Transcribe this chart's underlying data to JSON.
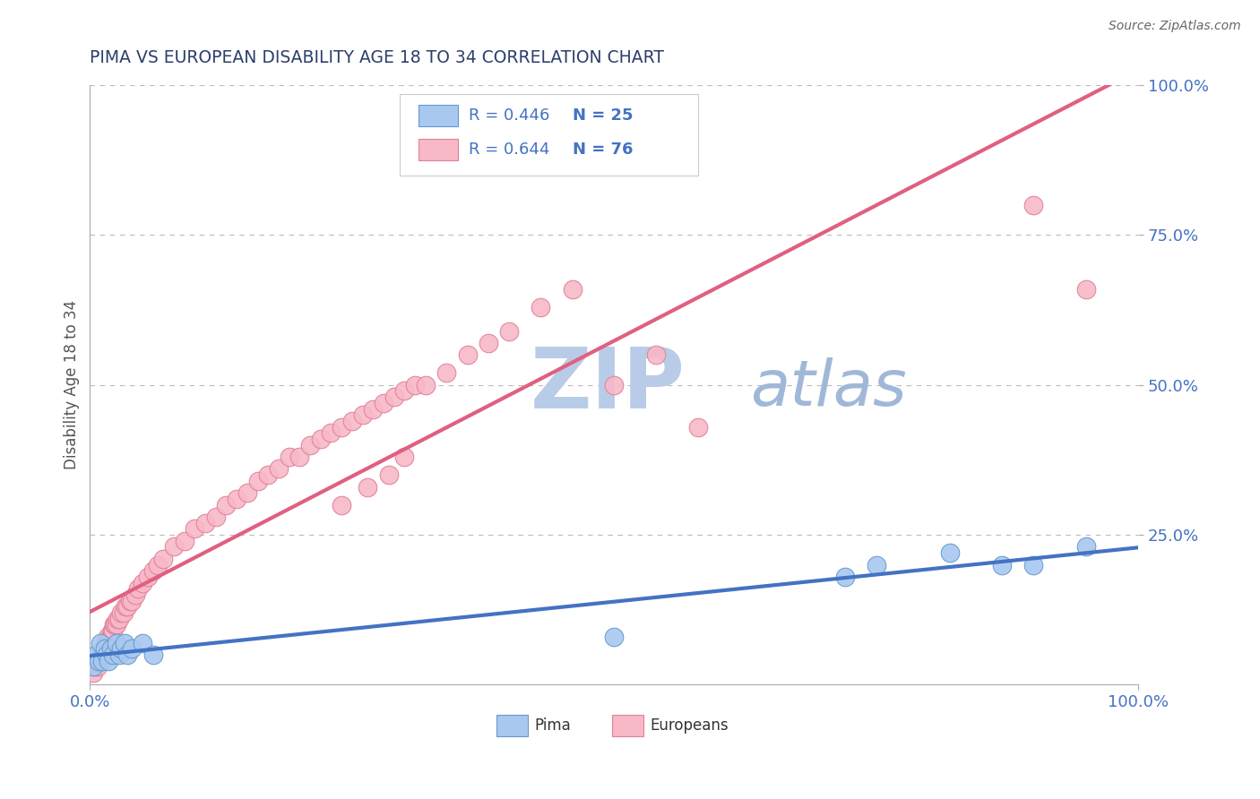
{
  "title": "PIMA VS EUROPEAN DISABILITY AGE 18 TO 34 CORRELATION CHART",
  "source": "Source: ZipAtlas.com",
  "ylabel": "Disability Age 18 to 34",
  "xlim": [
    0,
    1
  ],
  "ylim": [
    0,
    1
  ],
  "ytick_labels": [
    "25.0%",
    "50.0%",
    "75.0%",
    "100.0%"
  ],
  "ytick_positions": [
    0.25,
    0.5,
    0.75,
    1.0
  ],
  "pima_color": "#a8c8f0",
  "pima_edge_color": "#6699cc",
  "european_color": "#f8b8c8",
  "european_edge_color": "#e08098",
  "pima_line_color": "#4472c4",
  "european_line_color": "#e06080",
  "legend_R_pima": "R = 0.446",
  "legend_N_pima": "N = 25",
  "legend_R_european": "R = 0.644",
  "legend_N_european": "N = 76",
  "pima_points_x": [
    0.003,
    0.006,
    0.008,
    0.01,
    0.012,
    0.014,
    0.016,
    0.018,
    0.02,
    0.022,
    0.025,
    0.028,
    0.03,
    0.033,
    0.036,
    0.04,
    0.05,
    0.06,
    0.5,
    0.72,
    0.75,
    0.82,
    0.87,
    0.9,
    0.95
  ],
  "pima_points_y": [
    0.03,
    0.05,
    0.04,
    0.07,
    0.04,
    0.06,
    0.05,
    0.04,
    0.06,
    0.05,
    0.07,
    0.05,
    0.06,
    0.07,
    0.05,
    0.06,
    0.07,
    0.05,
    0.08,
    0.18,
    0.2,
    0.22,
    0.2,
    0.2,
    0.23
  ],
  "european_points_x": [
    0.003,
    0.005,
    0.007,
    0.008,
    0.009,
    0.01,
    0.011,
    0.012,
    0.013,
    0.014,
    0.015,
    0.016,
    0.017,
    0.018,
    0.019,
    0.02,
    0.021,
    0.022,
    0.023,
    0.024,
    0.025,
    0.026,
    0.028,
    0.03,
    0.032,
    0.034,
    0.036,
    0.038,
    0.04,
    0.043,
    0.046,
    0.05,
    0.055,
    0.06,
    0.065,
    0.07,
    0.08,
    0.09,
    0.1,
    0.11,
    0.12,
    0.13,
    0.14,
    0.15,
    0.16,
    0.17,
    0.18,
    0.19,
    0.2,
    0.21,
    0.22,
    0.23,
    0.24,
    0.25,
    0.26,
    0.27,
    0.28,
    0.29,
    0.3,
    0.31,
    0.32,
    0.34,
    0.36,
    0.38,
    0.4,
    0.43,
    0.46,
    0.5,
    0.54,
    0.58,
    0.24,
    0.265,
    0.285,
    0.3,
    0.9,
    0.95
  ],
  "european_points_y": [
    0.02,
    0.03,
    0.03,
    0.04,
    0.04,
    0.04,
    0.05,
    0.05,
    0.06,
    0.06,
    0.07,
    0.07,
    0.08,
    0.07,
    0.08,
    0.08,
    0.09,
    0.09,
    0.1,
    0.1,
    0.1,
    0.11,
    0.11,
    0.12,
    0.12,
    0.13,
    0.13,
    0.14,
    0.14,
    0.15,
    0.16,
    0.17,
    0.18,
    0.19,
    0.2,
    0.21,
    0.23,
    0.24,
    0.26,
    0.27,
    0.28,
    0.3,
    0.31,
    0.32,
    0.34,
    0.35,
    0.36,
    0.38,
    0.38,
    0.4,
    0.41,
    0.42,
    0.43,
    0.44,
    0.45,
    0.46,
    0.47,
    0.48,
    0.49,
    0.5,
    0.5,
    0.52,
    0.55,
    0.57,
    0.59,
    0.63,
    0.66,
    0.5,
    0.55,
    0.43,
    0.3,
    0.33,
    0.35,
    0.38,
    0.8,
    0.66
  ],
  "watermark_zip": "ZIP",
  "watermark_atlas": "atlas",
  "watermark_color_zip": "#b8cce8",
  "watermark_color_atlas": "#a0b8d8",
  "bg_color": "#ffffff",
  "grid_color": "#bbbbbb",
  "title_color": "#2c3e6b",
  "axis_label_color": "#555555",
  "tick_label_color": "#4472c4",
  "legend_color": "#4472c4",
  "legend_N_color": "#333333"
}
